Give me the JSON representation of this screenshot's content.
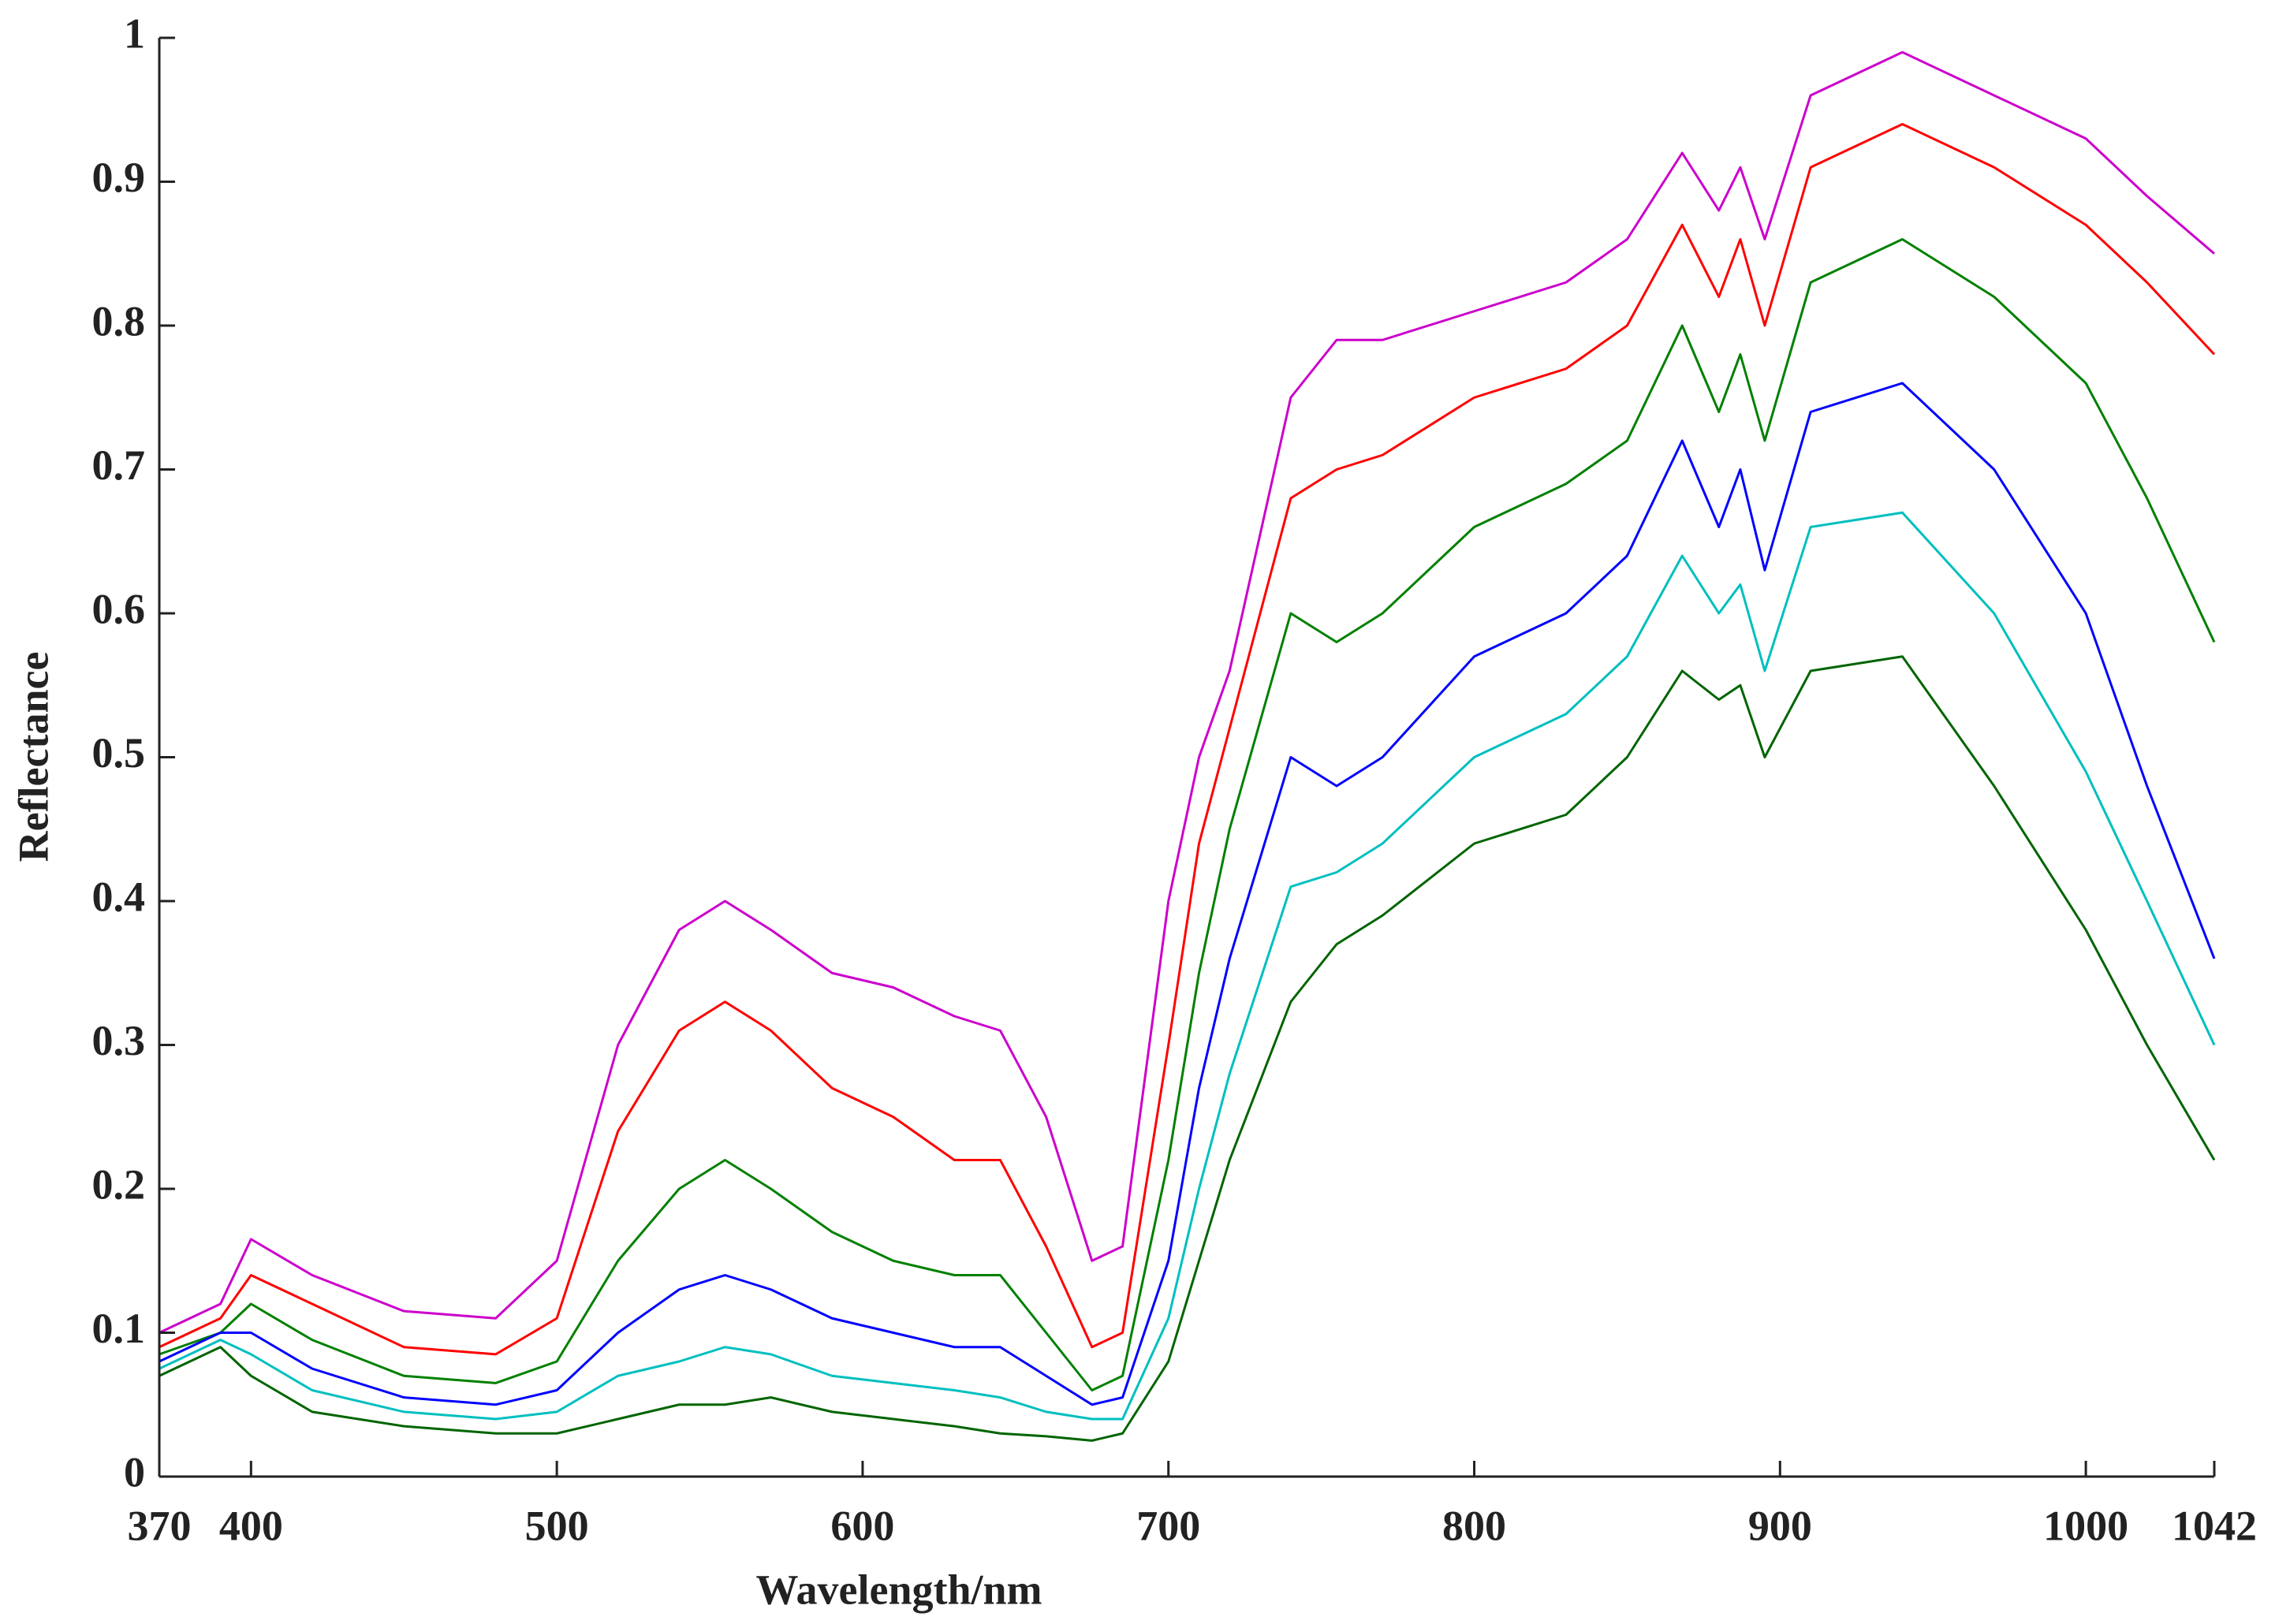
{
  "chart_data": {
    "type": "line",
    "x_label": "Wavelength/nm",
    "y_label": "Reflectance",
    "x": [
      370,
      390,
      400,
      420,
      450,
      480,
      500,
      520,
      540,
      555,
      570,
      590,
      610,
      630,
      645,
      660,
      675,
      685,
      700,
      710,
      720,
      740,
      755,
      770,
      800,
      830,
      850,
      868,
      880,
      887,
      895,
      910,
      940,
      970,
      1000,
      1020,
      1042
    ],
    "series": [
      {
        "color": "#cc00cc",
        "values": [
          0.1,
          0.12,
          0.165,
          0.14,
          0.115,
          0.11,
          0.15,
          0.3,
          0.38,
          0.4,
          0.38,
          0.35,
          0.34,
          0.32,
          0.31,
          0.25,
          0.15,
          0.16,
          0.4,
          0.5,
          0.56,
          0.75,
          0.79,
          0.79,
          0.81,
          0.83,
          0.86,
          0.92,
          0.88,
          0.91,
          0.86,
          0.96,
          0.99,
          0.96,
          0.93,
          0.89,
          0.85
        ]
      },
      {
        "color": "#ff0000",
        "values": [
          0.09,
          0.11,
          0.14,
          0.12,
          0.09,
          0.085,
          0.11,
          0.24,
          0.31,
          0.33,
          0.31,
          0.27,
          0.25,
          0.22,
          0.22,
          0.16,
          0.09,
          0.1,
          0.3,
          0.44,
          0.52,
          0.68,
          0.7,
          0.71,
          0.75,
          0.77,
          0.8,
          0.87,
          0.82,
          0.86,
          0.8,
          0.91,
          0.94,
          0.91,
          0.87,
          0.83,
          0.78
        ]
      },
      {
        "color": "#008000",
        "values": [
          0.085,
          0.1,
          0.12,
          0.095,
          0.07,
          0.065,
          0.08,
          0.15,
          0.2,
          0.22,
          0.2,
          0.17,
          0.15,
          0.14,
          0.14,
          0.1,
          0.06,
          0.07,
          0.22,
          0.35,
          0.45,
          0.6,
          0.58,
          0.6,
          0.66,
          0.69,
          0.72,
          0.8,
          0.74,
          0.78,
          0.72,
          0.83,
          0.86,
          0.82,
          0.76,
          0.68,
          0.58
        ]
      },
      {
        "color": "#0000ff",
        "values": [
          0.08,
          0.1,
          0.1,
          0.075,
          0.055,
          0.05,
          0.06,
          0.1,
          0.13,
          0.14,
          0.13,
          0.11,
          0.1,
          0.09,
          0.09,
          0.07,
          0.05,
          0.055,
          0.15,
          0.27,
          0.36,
          0.5,
          0.48,
          0.5,
          0.57,
          0.6,
          0.64,
          0.72,
          0.66,
          0.7,
          0.63,
          0.74,
          0.76,
          0.7,
          0.6,
          0.48,
          0.36
        ]
      },
      {
        "color": "#00bfbf",
        "values": [
          0.075,
          0.095,
          0.085,
          0.06,
          0.045,
          0.04,
          0.045,
          0.07,
          0.08,
          0.09,
          0.085,
          0.07,
          0.065,
          0.06,
          0.055,
          0.045,
          0.04,
          0.04,
          0.11,
          0.2,
          0.28,
          0.41,
          0.42,
          0.44,
          0.5,
          0.53,
          0.57,
          0.64,
          0.6,
          0.62,
          0.56,
          0.66,
          0.67,
          0.6,
          0.49,
          0.4,
          0.3
        ]
      },
      {
        "color": "#006400",
        "values": [
          0.07,
          0.09,
          0.07,
          0.045,
          0.035,
          0.03,
          0.03,
          0.04,
          0.05,
          0.05,
          0.055,
          0.045,
          0.04,
          0.035,
          0.03,
          0.028,
          0.025,
          0.03,
          0.08,
          0.15,
          0.22,
          0.33,
          0.37,
          0.39,
          0.44,
          0.46,
          0.5,
          0.56,
          0.54,
          0.55,
          0.5,
          0.56,
          0.57,
          0.48,
          0.38,
          0.3,
          0.22
        ]
      }
    ],
    "xlim": [
      370,
      1042
    ],
    "xticks": [
      370,
      400,
      500,
      600,
      700,
      800,
      900,
      1000,
      1042
    ],
    "ylim": [
      0,
      1
    ],
    "yticks": [
      0,
      0.1,
      0.2,
      0.3,
      0.4,
      0.5,
      0.6,
      0.7,
      0.8,
      0.9,
      1
    ],
    "grid": false
  }
}
